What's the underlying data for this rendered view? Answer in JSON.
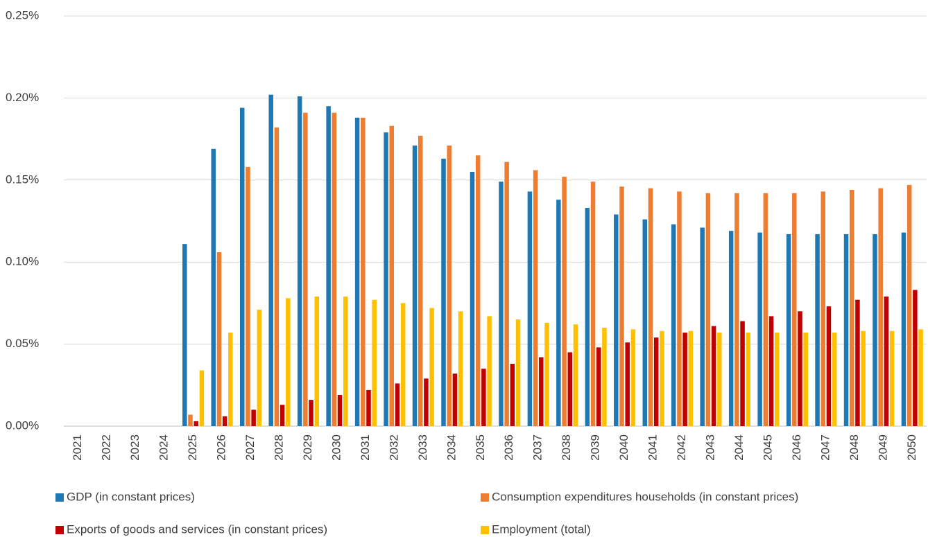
{
  "chart_data": {
    "type": "bar",
    "categories": [
      "2021",
      "2022",
      "2023",
      "2024",
      "2025",
      "2026",
      "2027",
      "2028",
      "2029",
      "2030",
      "2031",
      "2032",
      "2033",
      "2034",
      "2035",
      "2036",
      "2037",
      "2038",
      "2039",
      "2040",
      "2041",
      "2042",
      "2043",
      "2044",
      "2045",
      "2046",
      "2047",
      "2048",
      "2049",
      "2050"
    ],
    "series": [
      {
        "name": "GDP (in constant prices)",
        "color": "#1f77b4",
        "values": [
          null,
          null,
          null,
          null,
          0.111,
          0.169,
          0.194,
          0.202,
          0.201,
          0.195,
          0.188,
          0.179,
          0.171,
          0.163,
          0.155,
          0.149,
          0.143,
          0.138,
          0.133,
          0.129,
          0.126,
          0.123,
          0.121,
          0.119,
          0.118,
          0.117,
          0.117,
          0.117,
          0.117,
          0.118
        ]
      },
      {
        "name": "Consumption expenditures households (in constant prices)",
        "color": "#ed7d31",
        "values": [
          null,
          null,
          null,
          null,
          0.007,
          0.106,
          0.158,
          0.182,
          0.191,
          0.191,
          0.188,
          0.183,
          0.177,
          0.171,
          0.165,
          0.161,
          0.156,
          0.152,
          0.149,
          0.146,
          0.145,
          0.143,
          0.142,
          0.142,
          0.142,
          0.142,
          0.143,
          0.144,
          0.145,
          0.147
        ]
      },
      {
        "name": "Exports of goods and services (in constant prices)",
        "color": "#c00000",
        "values": [
          null,
          null,
          null,
          null,
          0.003,
          0.006,
          0.01,
          0.013,
          0.016,
          0.019,
          0.022,
          0.026,
          0.029,
          0.032,
          0.035,
          0.038,
          0.042,
          0.045,
          0.048,
          0.051,
          0.054,
          0.057,
          0.061,
          0.064,
          0.067,
          0.07,
          0.073,
          0.077,
          0.079,
          0.083
        ]
      },
      {
        "name": "Employment (total)",
        "color": "#ffc000",
        "values": [
          null,
          null,
          null,
          null,
          0.034,
          0.057,
          0.071,
          0.078,
          0.079,
          0.079,
          0.077,
          0.075,
          0.072,
          0.07,
          0.067,
          0.065,
          0.063,
          0.062,
          0.06,
          0.059,
          0.058,
          0.058,
          0.057,
          0.057,
          0.057,
          0.057,
          0.057,
          0.058,
          0.058,
          0.059
        ]
      }
    ],
    "ylim": [
      0,
      0.25
    ],
    "yticks": [
      {
        "value": 0,
        "label": "0.00%"
      },
      {
        "value": 0.05,
        "label": "0.05%"
      },
      {
        "value": 0.1,
        "label": "0.10%"
      },
      {
        "value": 0.15,
        "label": "0.15%"
      },
      {
        "value": 0.2,
        "label": "0.20%"
      },
      {
        "value": 0.25,
        "label": "0.25%"
      }
    ],
    "grid": true,
    "legend": "bottom"
  }
}
